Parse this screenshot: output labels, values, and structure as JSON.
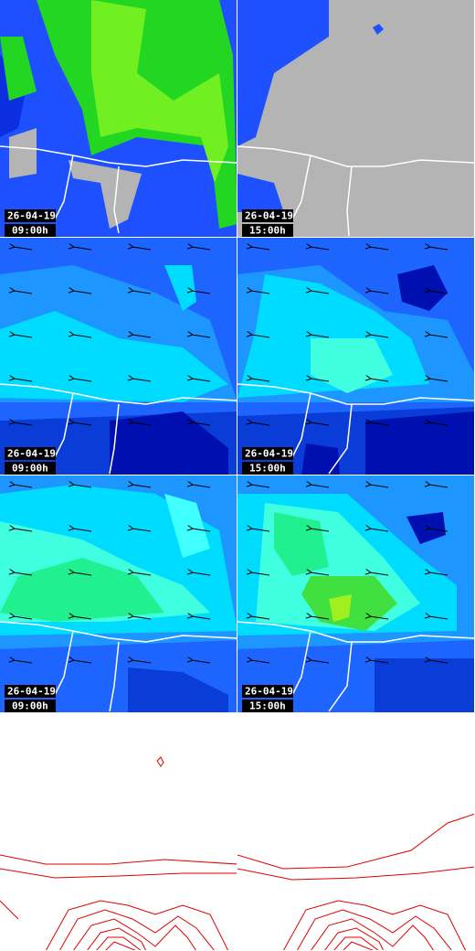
{
  "panels": [
    {
      "date": "26-04-19",
      "time": "09:00h"
    },
    {
      "date": "26-04-19",
      "time": "15:00h"
    },
    {
      "date": "26-04-19",
      "time": "09:00h"
    },
    {
      "date": "26-04-19",
      "time": "15:00h"
    },
    {
      "date": "26-04-19",
      "time": "09:00h"
    },
    {
      "date": "26-04-19",
      "time": "15:00h"
    }
  ]
}
